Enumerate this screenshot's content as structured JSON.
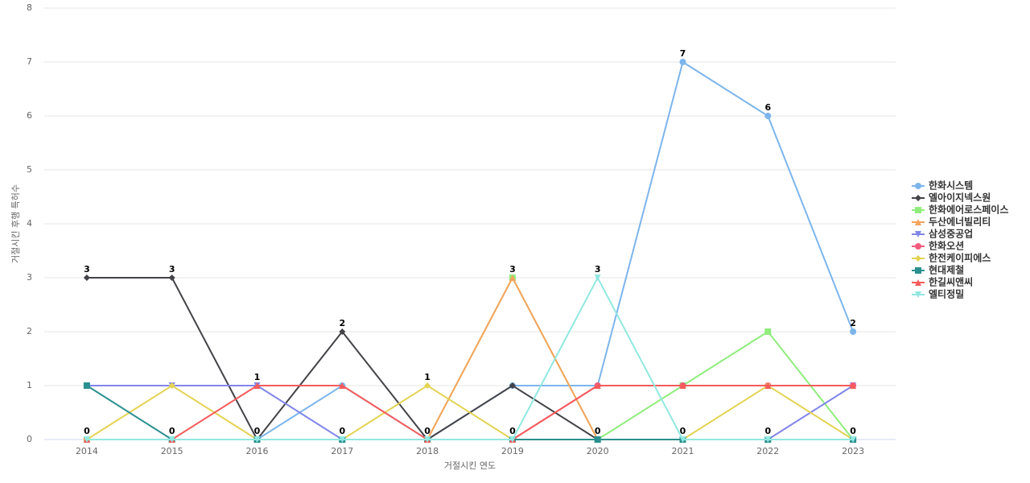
{
  "chart_data": {
    "type": "line",
    "x_label": "거절시킨 연도",
    "y_label": "거절시킨 후행 특허수",
    "categories": [
      "2014",
      "2015",
      "2016",
      "2017",
      "2018",
      "2019",
      "2020",
      "2021",
      "2022",
      "2023"
    ],
    "ylim": [
      0,
      8
    ],
    "yticks": [
      0,
      1,
      2,
      3,
      4,
      5,
      6,
      7,
      8
    ],
    "grid": true,
    "series": [
      {
        "name": "한화시스템",
        "color": "#7cb5ec",
        "marker": "circle",
        "values": [
          0,
          0,
          0,
          1,
          0,
          1,
          1,
          7,
          6,
          2
        ]
      },
      {
        "name": "엘아이지넥스원",
        "color": "#434348",
        "marker": "diamond",
        "values": [
          3,
          3,
          0,
          2,
          0,
          1,
          0,
          0,
          0,
          0
        ]
      },
      {
        "name": "한화에어로스페이스",
        "color": "#90ed7d",
        "marker": "square",
        "values": [
          0,
          0,
          0,
          0,
          0,
          3,
          0,
          1,
          2,
          0
        ]
      },
      {
        "name": "두산에너빌리티",
        "color": "#f7a35c",
        "marker": "triangle",
        "values": [
          0,
          0,
          0,
          0,
          0,
          3,
          0,
          0,
          0,
          0
        ]
      },
      {
        "name": "삼성중공업",
        "color": "#8085e9",
        "marker": "triangle-down",
        "values": [
          1,
          1,
          1,
          0,
          0,
          0,
          0,
          0,
          0,
          1
        ]
      },
      {
        "name": "한화오션",
        "color": "#f15c80",
        "marker": "circle",
        "values": [
          0,
          0,
          0,
          0,
          0,
          0,
          1,
          1,
          1,
          1
        ]
      },
      {
        "name": "한전케이피에스",
        "color": "#e4d354",
        "marker": "diamond",
        "values": [
          0,
          1,
          0,
          0,
          1,
          0,
          0,
          0,
          1,
          0
        ]
      },
      {
        "name": "현대제철",
        "color": "#2b908f",
        "marker": "square",
        "values": [
          1,
          0,
          0,
          0,
          0,
          0,
          0,
          0,
          0,
          0
        ]
      },
      {
        "name": "한길씨앤씨",
        "color": "#f45b5b",
        "marker": "triangle",
        "values": [
          0,
          0,
          1,
          1,
          0,
          0,
          1,
          1,
          1,
          1
        ]
      },
      {
        "name": "엘티정밀",
        "color": "#91e8e1",
        "marker": "triangle-down",
        "values": [
          0,
          0,
          0,
          0,
          0,
          0,
          3,
          0,
          0,
          0
        ]
      }
    ]
  }
}
